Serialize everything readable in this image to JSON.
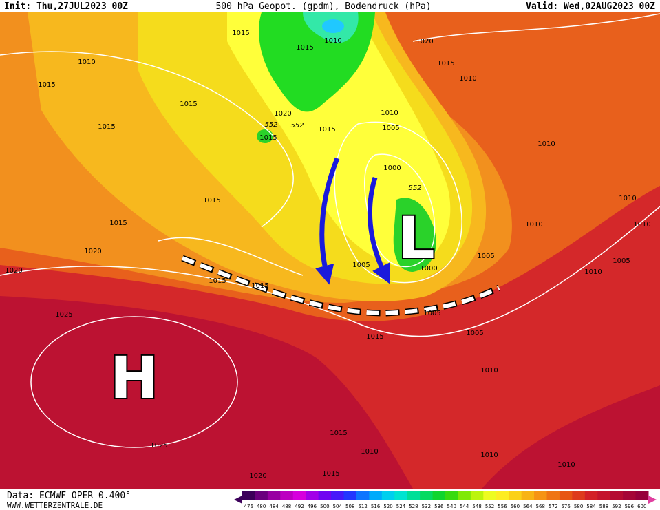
{
  "header": {
    "init": "Init: Thu,27JUL2023 00Z",
    "title": "500 hPa Geopot. (gpdm), Bodendruck (hPa)",
    "valid": "Valid: Wed,02AUG2023 00Z"
  },
  "pressure_labels": [
    "1015",
    "1010",
    "1015",
    "1020",
    "1010",
    "1015",
    "1010",
    "1015",
    "1015",
    "1010",
    "1020",
    "1015",
    "1005",
    "1015",
    "1015",
    "1010",
    "1000",
    "1015",
    "1010",
    "1015",
    "1010",
    "1010",
    "1020",
    "1005",
    "1005",
    "1020",
    "1005",
    "1000",
    "1010",
    "1015",
    "1015",
    "1025",
    "1005",
    "1005",
    "1015",
    "1010",
    "1025",
    "1015",
    "1010",
    "1010",
    "1015",
    "1020",
    "1010"
  ],
  "geopotential_labels": [
    "552",
    "552",
    "552"
  ],
  "systems": {
    "high": "H",
    "low": "L"
  },
  "footer": {
    "source": "Data: ECMWF OPER 0.400°",
    "site": "WWW.WETTERZENTRALE.DE"
  },
  "colorbar": [
    476,
    480,
    484,
    488,
    492,
    496,
    500,
    504,
    508,
    512,
    516,
    520,
    524,
    528,
    532,
    536,
    540,
    544,
    548,
    552,
    556,
    560,
    564,
    568,
    572,
    576,
    580,
    584,
    588,
    592,
    596,
    600
  ]
}
